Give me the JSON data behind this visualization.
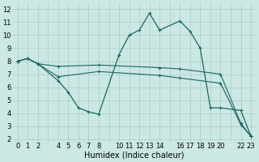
{
  "xlabel": "Humidex (Indice chaleur)",
  "background_color": "#cce8e4",
  "grid_color": "#aaccc8",
  "line_color": "#1a6660",
  "xlim": [
    -0.5,
    23.5
  ],
  "ylim": [
    1.8,
    12.5
  ],
  "xtick_vals": [
    0,
    1,
    2,
    4,
    5,
    6,
    7,
    8,
    10,
    11,
    12,
    13,
    14,
    16,
    17,
    18,
    19,
    20,
    22,
    23
  ],
  "ytick_vals": [
    2,
    3,
    4,
    5,
    6,
    7,
    8,
    9,
    10,
    11,
    12
  ],
  "line1_x": [
    0,
    1,
    2,
    4,
    5,
    6,
    7,
    8,
    10,
    11,
    12,
    13,
    14,
    16,
    17,
    18,
    19,
    20,
    22,
    23
  ],
  "line1_y": [
    8.0,
    8.2,
    7.8,
    6.5,
    5.6,
    4.4,
    4.1,
    3.9,
    8.5,
    10.0,
    10.4,
    11.7,
    10.4,
    11.1,
    10.3,
    9.0,
    4.4,
    4.4,
    4.2,
    2.2
  ],
  "line2_x": [
    0,
    1,
    2,
    4,
    8,
    14,
    16,
    20,
    22,
    23
  ],
  "line2_y": [
    8.0,
    8.2,
    7.8,
    7.6,
    7.7,
    7.5,
    7.4,
    7.0,
    3.2,
    2.2
  ],
  "line3_x": [
    0,
    1,
    2,
    4,
    8,
    14,
    16,
    20,
    22,
    23
  ],
  "line3_y": [
    8.0,
    8.2,
    7.8,
    6.8,
    7.2,
    6.9,
    6.7,
    6.3,
    3.1,
    2.2
  ],
  "tick_fontsize": 6,
  "xlabel_fontsize": 7
}
